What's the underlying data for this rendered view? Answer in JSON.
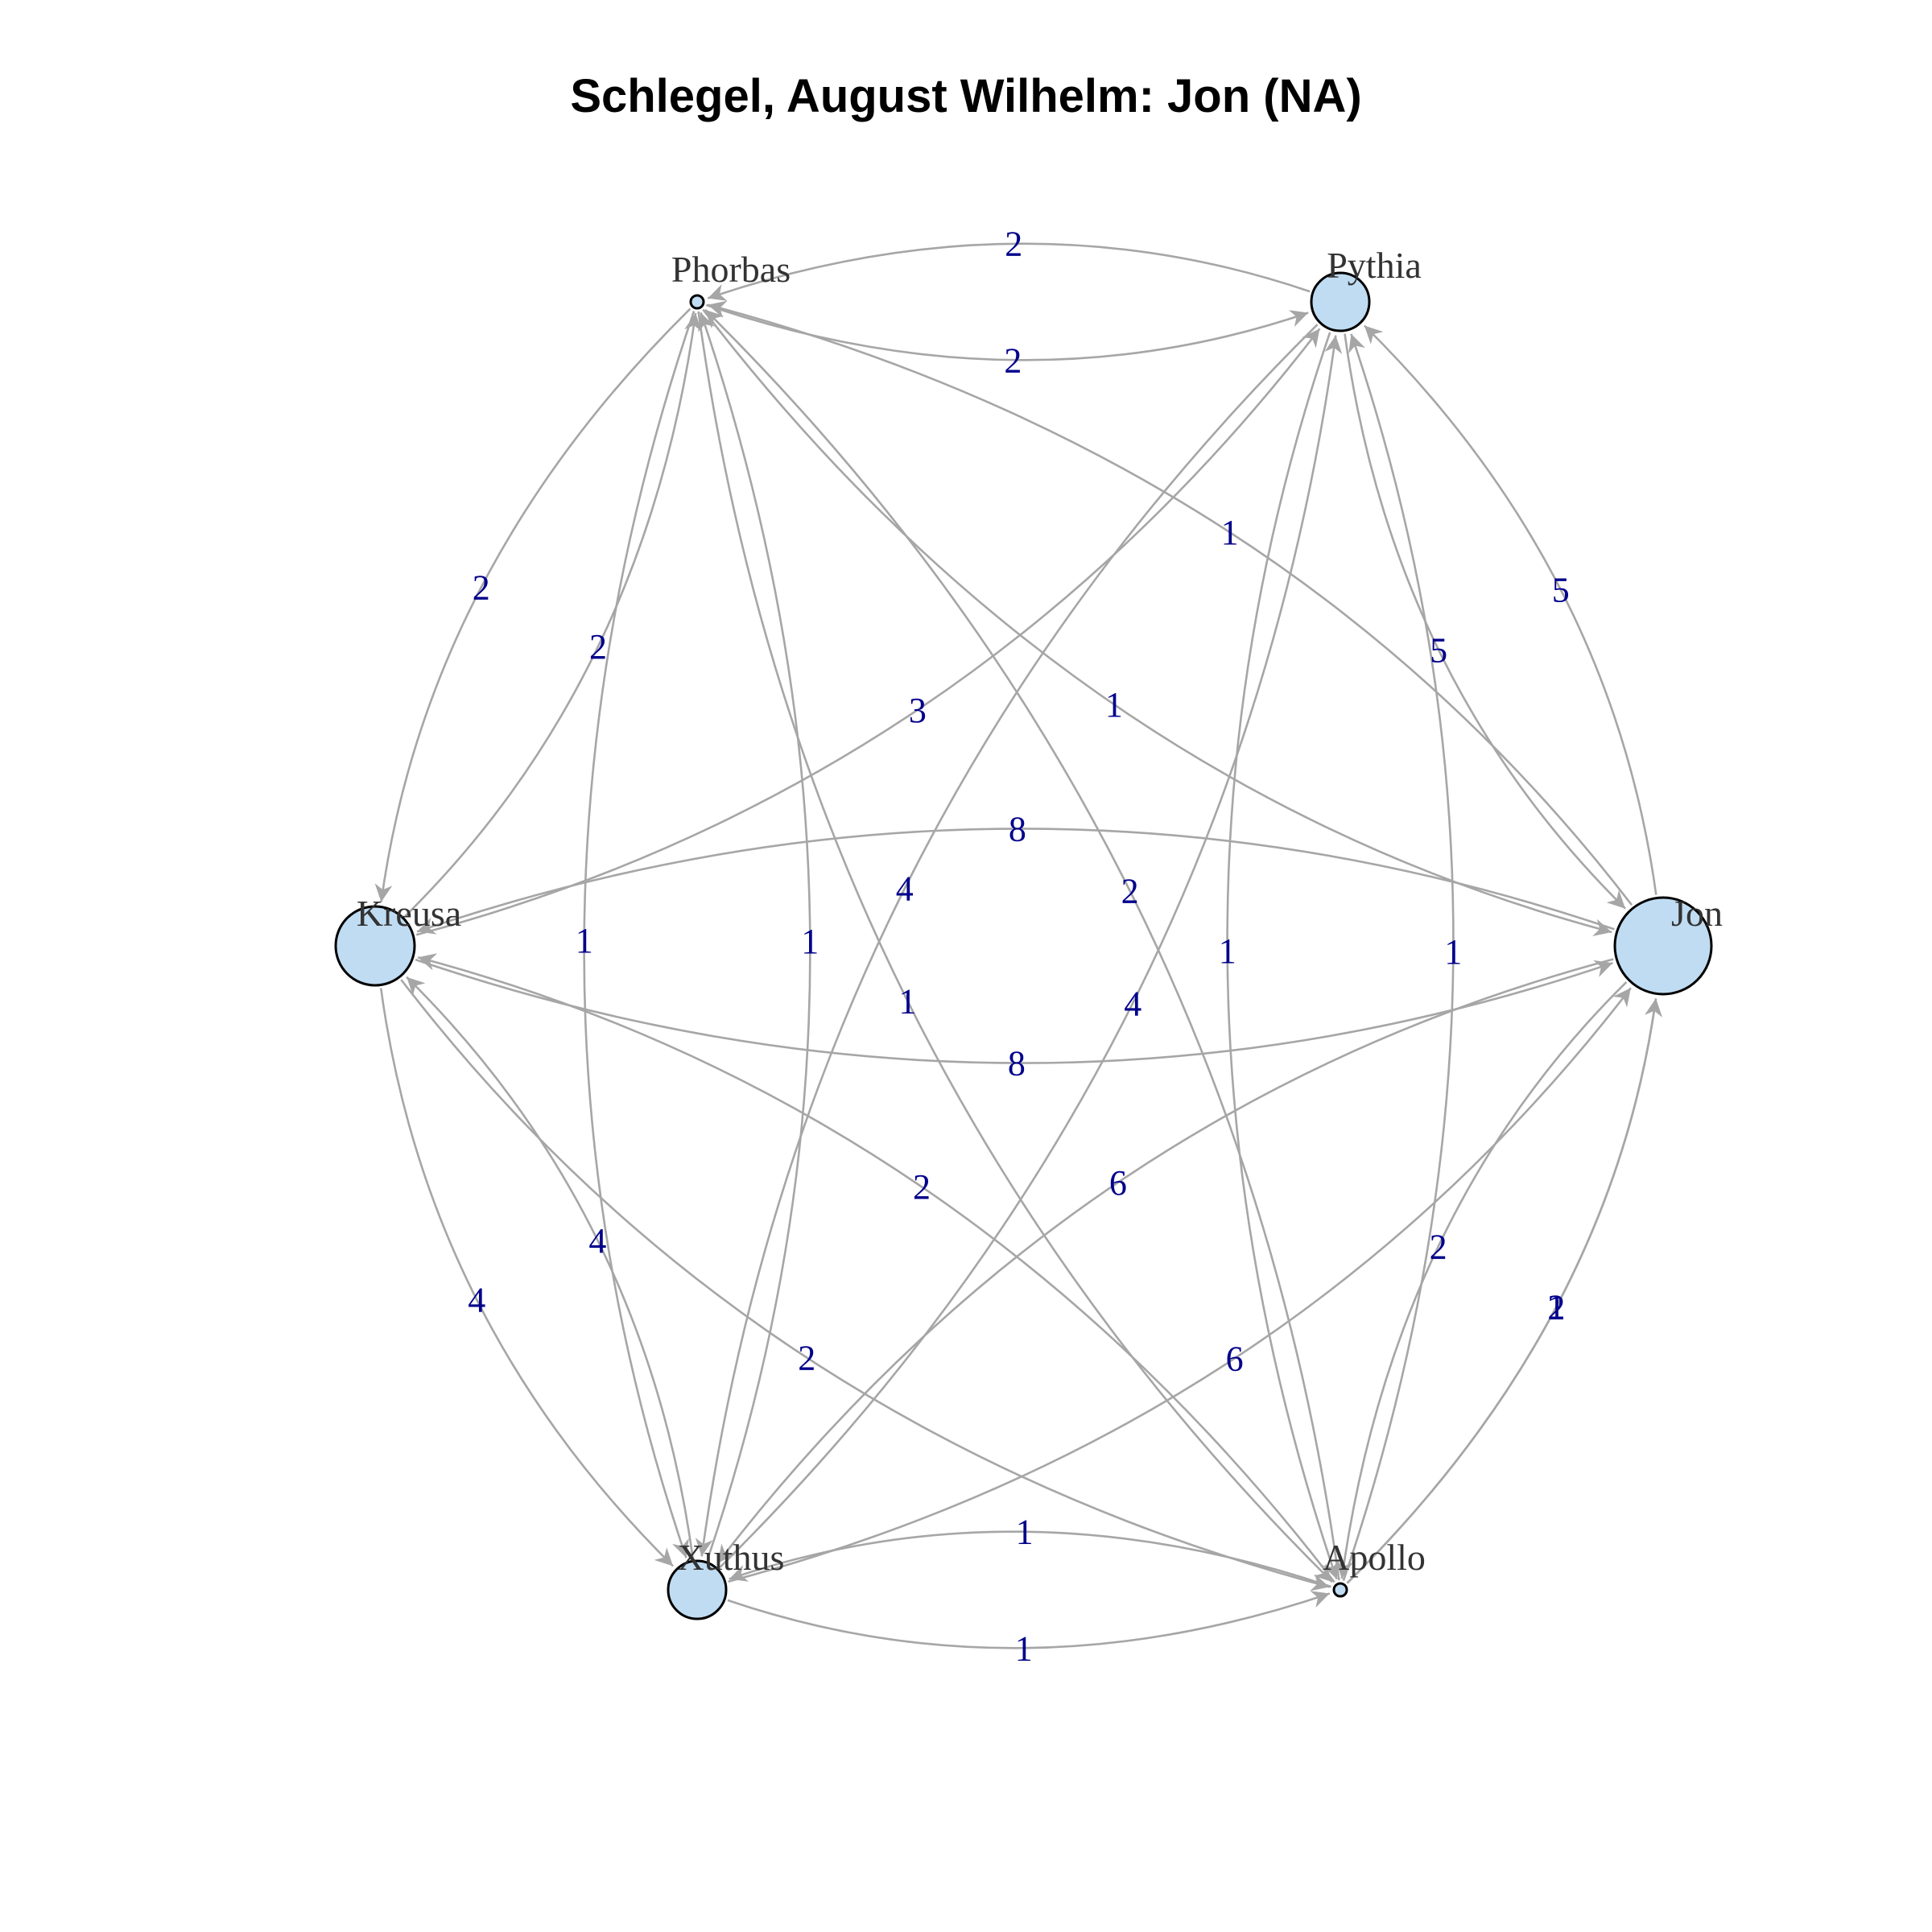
{
  "title": "Schlegel, August Wilhelm: Jon (NA)",
  "colors": {
    "node_fill": "#c0dcf2",
    "node_stroke": "#000000",
    "edge": "#a6a6a6",
    "edge_label": "#00008B",
    "node_label": "#333333"
  },
  "nodes": [
    {
      "id": "Phorbas",
      "label": "Phorbas",
      "size": "small"
    },
    {
      "id": "Pythia",
      "label": "Pythia",
      "size": "medium"
    },
    {
      "id": "Kreusa",
      "label": "Kreusa",
      "size": "large"
    },
    {
      "id": "Jon",
      "label": "Jon",
      "size": "xlarge"
    },
    {
      "id": "Xuthus",
      "label": "Xuthus",
      "size": "medium"
    },
    {
      "id": "Apollo",
      "label": "Apollo",
      "size": "small"
    }
  ],
  "edges": [
    {
      "from": "Phorbas",
      "to": "Pythia",
      "weight": "2"
    },
    {
      "from": "Pythia",
      "to": "Phorbas",
      "weight": "2"
    },
    {
      "from": "Kreusa",
      "to": "Pythia",
      "weight": "3"
    },
    {
      "from": "Kreusa",
      "to": "Phorbas",
      "weight": "2"
    },
    {
      "from": "Phorbas",
      "to": "Kreusa",
      "weight": "2"
    },
    {
      "from": "Xuthus",
      "to": "Phorbas",
      "weight": "1"
    },
    {
      "from": "Phorbas",
      "to": "Xuthus",
      "weight": "1"
    },
    {
      "from": "Jon",
      "to": "Phorbas",
      "weight": "1"
    },
    {
      "from": "Phorbas",
      "to": "Jon",
      "weight": "1"
    },
    {
      "from": "Apollo",
      "to": "Phorbas",
      "weight": "2"
    },
    {
      "from": "Phorbas",
      "to": "Apollo",
      "weight": "1"
    },
    {
      "from": "Pythia",
      "to": "Jon",
      "weight": "5"
    },
    {
      "from": "Jon",
      "to": "Pythia",
      "weight": "5"
    },
    {
      "from": "Kreusa",
      "to": "Jon",
      "weight": "8"
    },
    {
      "from": "Jon",
      "to": "Kreusa",
      "weight": "8"
    },
    {
      "from": "Kreusa",
      "to": "Xuthus",
      "weight": "4"
    },
    {
      "from": "Xuthus",
      "to": "Kreusa",
      "weight": "4"
    },
    {
      "from": "Kreusa",
      "to": "Apollo",
      "weight": "2"
    },
    {
      "from": "Apollo",
      "to": "Kreusa",
      "weight": "2"
    },
    {
      "from": "Xuthus",
      "to": "Jon",
      "weight": "6"
    },
    {
      "from": "Jon",
      "to": "Xuthus",
      "weight": "6"
    },
    {
      "from": "Xuthus",
      "to": "Pythia",
      "weight": "4"
    },
    {
      "from": "Pythia",
      "to": "Xuthus",
      "weight": "4"
    },
    {
      "from": "Xuthus",
      "to": "Apollo",
      "weight": "1"
    },
    {
      "from": "Apollo",
      "to": "Xuthus",
      "weight": "1"
    },
    {
      "from": "Jon",
      "to": "Apollo",
      "weight": "2"
    },
    {
      "from": "Apollo",
      "to": "Jon",
      "weight": "2"
    },
    {
      "from": "Apollo",
      "to": "Pythia",
      "weight": "1"
    },
    {
      "from": "Pythia",
      "to": "Apollo",
      "weight": "1"
    },
    {
      "from": "Apollo",
      "to": "Jon",
      "weight": "1"
    }
  ]
}
